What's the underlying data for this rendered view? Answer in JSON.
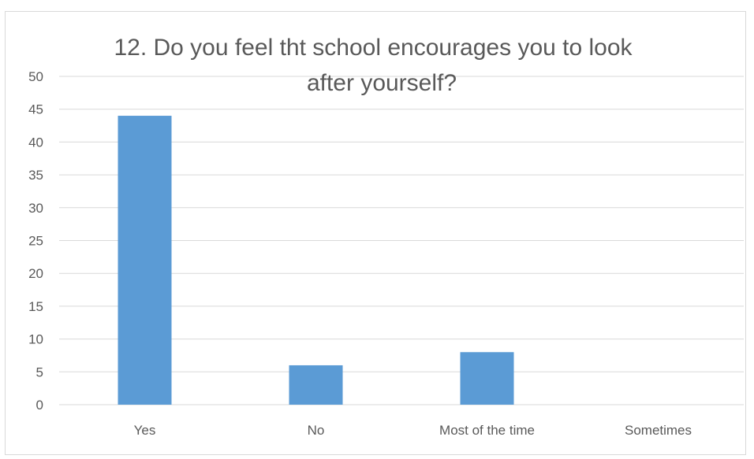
{
  "chart_data": {
    "type": "bar",
    "title_lines": [
      "12. Do you feel tht school encourages you to look",
      "after yourself?"
    ],
    "categories": [
      "Yes",
      "No",
      "Most of the time",
      "Sometimes"
    ],
    "values": [
      44,
      6,
      8,
      0
    ],
    "ylim": [
      0,
      50
    ],
    "yticks": [
      0,
      5,
      10,
      15,
      20,
      25,
      30,
      35,
      40,
      45,
      50
    ],
    "grid": true,
    "legend": "none",
    "bar_color": "#5b9bd5",
    "text_color": "#595959",
    "grid_color": "#d9d9d9"
  }
}
